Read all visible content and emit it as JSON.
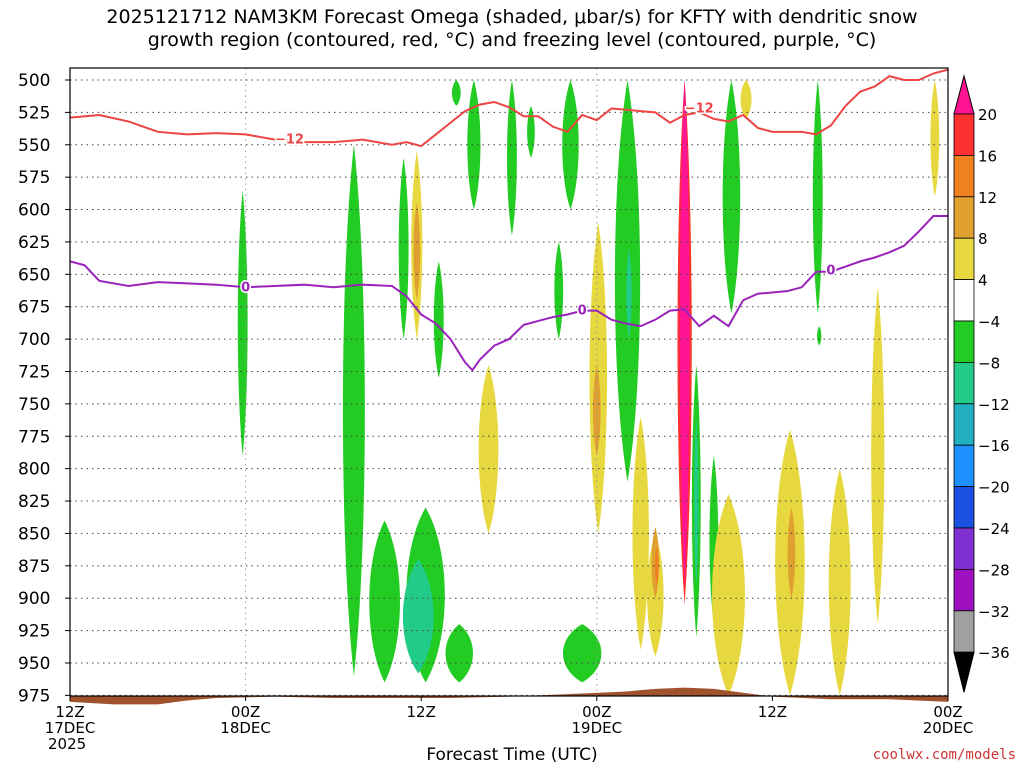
{
  "title_line1": "2025121712 NAM3KM Forecast Omega (shaded, μbar/s) for KFTY with dendritic snow",
  "title_line2": "growth region (contoured, red, °C) and freezing level (contoured, purple, °C)",
  "credit": "coolwx.com/models",
  "chart_data": {
    "type": "heatmap",
    "xlabel": "Forecast Time (UTC)",
    "x_ticks": [
      {
        "hour": 0,
        "lines": [
          "12Z",
          "17DEC",
          "2025"
        ]
      },
      {
        "hour": 12,
        "lines": [
          "00Z",
          "18DEC"
        ]
      },
      {
        "hour": 24,
        "lines": [
          "12Z"
        ]
      },
      {
        "hour": 36,
        "lines": [
          "00Z",
          "19DEC"
        ]
      },
      {
        "hour": 48,
        "lines": [
          "12Z"
        ]
      },
      {
        "hour": 60,
        "lines": [
          "00Z",
          "20DEC"
        ]
      }
    ],
    "x_range": [
      0,
      60
    ],
    "y_range_hpa": [
      500,
      990
    ],
    "y_ticks": [
      500,
      525,
      550,
      575,
      600,
      625,
      650,
      675,
      700,
      725,
      750,
      775,
      800,
      825,
      850,
      875,
      900,
      925,
      950,
      975
    ],
    "grid": true,
    "colorbar": {
      "labels": [
        "20",
        "16",
        "12",
        "8",
        "4",
        "−4",
        "−8",
        "−12",
        "−16",
        "−20",
        "−24",
        "−28",
        "−32",
        "−36"
      ],
      "colors": [
        "#ff1493",
        "#ff3030",
        "#f08020",
        "#e0a030",
        "#e8d840",
        "#ffffff",
        "#22cc22",
        "#22cc88",
        "#22b0c0",
        "#1e90ff",
        "#1a50e0",
        "#8030d0",
        "#a010c0",
        "#a0a0a0",
        "#000000"
      ]
    },
    "contours": [
      {
        "color": "#ee4444",
        "label": "−12",
        "points": [
          [
            0,
            529
          ],
          [
            2,
            527
          ],
          [
            4,
            532
          ],
          [
            6,
            540
          ],
          [
            8,
            542
          ],
          [
            10,
            541
          ],
          [
            12,
            542
          ],
          [
            14,
            546
          ],
          [
            16,
            548
          ],
          [
            18,
            548
          ],
          [
            20,
            546
          ],
          [
            22,
            550
          ],
          [
            23,
            548
          ],
          [
            24,
            551
          ],
          [
            25,
            542
          ],
          [
            26,
            533
          ],
          [
            27,
            524
          ],
          [
            28,
            519
          ],
          [
            29,
            517
          ],
          [
            30,
            521
          ],
          [
            31,
            528
          ],
          [
            32,
            528
          ],
          [
            33,
            536
          ],
          [
            34,
            540
          ],
          [
            35,
            527
          ],
          [
            36,
            531
          ],
          [
            37,
            522
          ],
          [
            38,
            523
          ],
          [
            39,
            524
          ],
          [
            40,
            525
          ],
          [
            41,
            533
          ],
          [
            42,
            527
          ],
          [
            43,
            525
          ],
          [
            44,
            530
          ],
          [
            45,
            532
          ],
          [
            46,
            527
          ],
          [
            47,
            537
          ],
          [
            48,
            540
          ],
          [
            50,
            540
          ],
          [
            51,
            542
          ],
          [
            52,
            535
          ],
          [
            53,
            520
          ],
          [
            54,
            509
          ],
          [
            55,
            505
          ],
          [
            56,
            497
          ],
          [
            57,
            500
          ],
          [
            58,
            500
          ],
          [
            59,
            495
          ],
          [
            60,
            492
          ]
        ],
        "label_at": [
          [
            15,
            546
          ],
          [
            43,
            522
          ]
        ]
      },
      {
        "color": "#9922bb",
        "label": "0",
        "points": [
          [
            0,
            640
          ],
          [
            1,
            643
          ],
          [
            2,
            655
          ],
          [
            4,
            659
          ],
          [
            6,
            656
          ],
          [
            8,
            657
          ],
          [
            10,
            658
          ],
          [
            12,
            660
          ],
          [
            14,
            659
          ],
          [
            16,
            658
          ],
          [
            18,
            660
          ],
          [
            20,
            658
          ],
          [
            22,
            659
          ],
          [
            23,
            667
          ],
          [
            24,
            681
          ],
          [
            25,
            688
          ],
          [
            26,
            700
          ],
          [
            27,
            718
          ],
          [
            27.5,
            724
          ],
          [
            28,
            716
          ],
          [
            29,
            705
          ],
          [
            30,
            700
          ],
          [
            31,
            689
          ],
          [
            32,
            686
          ],
          [
            33,
            683
          ],
          [
            34,
            681
          ],
          [
            35,
            678
          ],
          [
            36,
            678
          ],
          [
            37,
            685
          ],
          [
            38,
            688
          ],
          [
            39,
            690
          ],
          [
            40,
            685
          ],
          [
            41,
            678
          ],
          [
            42,
            677
          ],
          [
            43,
            690
          ],
          [
            44,
            682
          ],
          [
            45,
            690
          ],
          [
            46,
            670
          ],
          [
            47,
            665
          ],
          [
            48,
            664
          ],
          [
            49,
            663
          ],
          [
            50,
            660
          ],
          [
            51,
            648
          ],
          [
            52,
            648
          ],
          [
            53,
            644
          ],
          [
            54,
            640
          ],
          [
            55,
            637
          ],
          [
            56,
            633
          ],
          [
            57,
            628
          ],
          [
            58,
            617
          ],
          [
            59,
            605
          ],
          [
            60,
            605
          ]
        ],
        "label_at": [
          [
            12,
            660
          ],
          [
            35,
            678
          ],
          [
            52,
            647
          ]
        ]
      }
    ],
    "shaded_regions": [
      {
        "value": "-4",
        "color": "#22cc22",
        "t": 11.8,
        "p0": 585,
        "p1": 790,
        "w": 0.9
      },
      {
        "value": "-4",
        "color": "#22cc22",
        "t": 19.4,
        "p0": 550,
        "p1": 960,
        "w": 2.0
      },
      {
        "value": "-4",
        "color": "#22cc22",
        "t": 22.8,
        "p0": 560,
        "p1": 700,
        "w": 0.9
      },
      {
        "value": "-4",
        "color": "#22cc22",
        "t": 25.2,
        "p0": 640,
        "p1": 730,
        "w": 0.9
      },
      {
        "value": "-4",
        "color": "#22cc22",
        "t": 24.3,
        "p0": 830,
        "p1": 965,
        "w": 3.5
      },
      {
        "value": "-4",
        "color": "#22cc22",
        "t": 21.5,
        "p0": 840,
        "p1": 965,
        "w": 2.8
      },
      {
        "value": "-4",
        "color": "#22cc22",
        "t": 26.6,
        "p0": 920,
        "p1": 965,
        "w": 2.5
      },
      {
        "value": "-4",
        "color": "#22cc22",
        "t": 26.4,
        "p0": 500,
        "p1": 520,
        "w": 0.8
      },
      {
        "value": "-4",
        "color": "#22cc22",
        "t": 27.6,
        "p0": 500,
        "p1": 600,
        "w": 1.2
      },
      {
        "value": "-4",
        "color": "#22cc22",
        "t": 30.2,
        "p0": 500,
        "p1": 620,
        "w": 0.9
      },
      {
        "value": "-4",
        "color": "#22cc22",
        "t": 31.5,
        "p0": 520,
        "p1": 560,
        "w": 0.7
      },
      {
        "value": "-4",
        "color": "#22cc22",
        "t": 33.4,
        "p0": 625,
        "p1": 700,
        "w": 0.8
      },
      {
        "value": "-4",
        "color": "#22cc22",
        "t": 34.2,
        "p0": 500,
        "p1": 600,
        "w": 1.5
      },
      {
        "value": "-4",
        "color": "#22cc22",
        "t": 38.1,
        "p0": 500,
        "p1": 810,
        "w": 2.3
      },
      {
        "value": "-4",
        "color": "#22cc22",
        "t": 35,
        "p0": 920,
        "p1": 965,
        "w": 3.5
      },
      {
        "value": "-4",
        "color": "#22cc22",
        "t": 45.2,
        "p0": 500,
        "p1": 680,
        "w": 1.6
      },
      {
        "value": "-4",
        "color": "#22cc22",
        "t": 42.8,
        "p0": 720,
        "p1": 930,
        "w": 0.8
      },
      {
        "value": "-4",
        "color": "#22cc22",
        "t": 44.0,
        "p0": 790,
        "p1": 920,
        "w": 0.8
      },
      {
        "value": "-4",
        "color": "#22cc22",
        "t": 51.1,
        "p0": 500,
        "p1": 680,
        "w": 0.9
      },
      {
        "value": "-4",
        "color": "#22cc22",
        "t": 51.2,
        "p0": 690,
        "p1": 705,
        "w": 0.4
      },
      {
        "value": "-8",
        "color": "#22cc88",
        "t": 23.8,
        "p0": 870,
        "p1": 958,
        "w": 2.8
      },
      {
        "value": "-8",
        "color": "#22cc88",
        "t": 38.2,
        "p0": 630,
        "p1": 700,
        "w": 0.5
      },
      {
        "value": "-8",
        "color": "#22cc88",
        "t": 42.8,
        "p0": 760,
        "p1": 890,
        "w": 0.4
      },
      {
        "value": "4",
        "color": "#e8d840",
        "t": 23.7,
        "p0": 555,
        "p1": 700,
        "w": 1.0
      },
      {
        "value": "4",
        "color": "#e8d840",
        "t": 28.6,
        "p0": 720,
        "p1": 850,
        "w": 1.8
      },
      {
        "value": "4",
        "color": "#e8d840",
        "t": 36.1,
        "p0": 610,
        "p1": 850,
        "w": 1.6
      },
      {
        "value": "4",
        "color": "#e8d840",
        "t": 39.0,
        "p0": 760,
        "p1": 940,
        "w": 1.5
      },
      {
        "value": "4",
        "color": "#e8d840",
        "t": 40.0,
        "p0": 850,
        "p1": 945,
        "w": 1.5
      },
      {
        "value": "4",
        "color": "#e8d840",
        "t": 46.2,
        "p0": 500,
        "p1": 530,
        "w": 1.0
      },
      {
        "value": "4",
        "color": "#e8d840",
        "t": 45,
        "p0": 820,
        "p1": 975,
        "w": 3.0
      },
      {
        "value": "4",
        "color": "#e8d840",
        "t": 49.2,
        "p0": 770,
        "p1": 975,
        "w": 2.7
      },
      {
        "value": "4",
        "color": "#e8d840",
        "t": 52.6,
        "p0": 800,
        "p1": 975,
        "w": 2.0
      },
      {
        "value": "4",
        "color": "#e8d840",
        "t": 55.2,
        "p0": 660,
        "p1": 920,
        "w": 1.2
      },
      {
        "value": "4",
        "color": "#e8d840",
        "t": 59.1,
        "p0": 500,
        "p1": 590,
        "w": 0.8
      },
      {
        "value": "8",
        "color": "#e0a030",
        "t": 23.7,
        "p0": 595,
        "p1": 670,
        "w": 0.6
      },
      {
        "value": "8",
        "color": "#e0a030",
        "t": 36.0,
        "p0": 720,
        "p1": 790,
        "w": 0.7
      },
      {
        "value": "8",
        "color": "#e0a030",
        "t": 40.0,
        "p0": 845,
        "p1": 900,
        "w": 0.7
      },
      {
        "value": "8",
        "color": "#e0a030",
        "t": 49.3,
        "p0": 830,
        "p1": 900,
        "w": 0.7
      },
      {
        "value": "12",
        "color": "#f08020",
        "t": 40.1,
        "p0": 860,
        "p1": 890,
        "w": 0.3
      },
      {
        "value": "16",
        "color": "#ff3030",
        "t": 42.0,
        "p0": 500,
        "p1": 905,
        "w": 1.3
      },
      {
        "value": "20",
        "color": "#ff1493",
        "t": 42.0,
        "p0": 500,
        "p1": 890,
        "w": 0.9
      }
    ],
    "terrain": {
      "color": "#a0522d",
      "points": [
        [
          0,
          980
        ],
        [
          3,
          982
        ],
        [
          6,
          982
        ],
        [
          8,
          979
        ],
        [
          10,
          977
        ],
        [
          14,
          976
        ],
        [
          18,
          977
        ],
        [
          22,
          977
        ],
        [
          26,
          977
        ],
        [
          30,
          976
        ],
        [
          34,
          974
        ],
        [
          38,
          972
        ],
        [
          40,
          970
        ],
        [
          42,
          969
        ],
        [
          44,
          970
        ],
        [
          46,
          973
        ],
        [
          48,
          976
        ],
        [
          52,
          978
        ],
        [
          56,
          978
        ],
        [
          60,
          980
        ]
      ]
    }
  }
}
